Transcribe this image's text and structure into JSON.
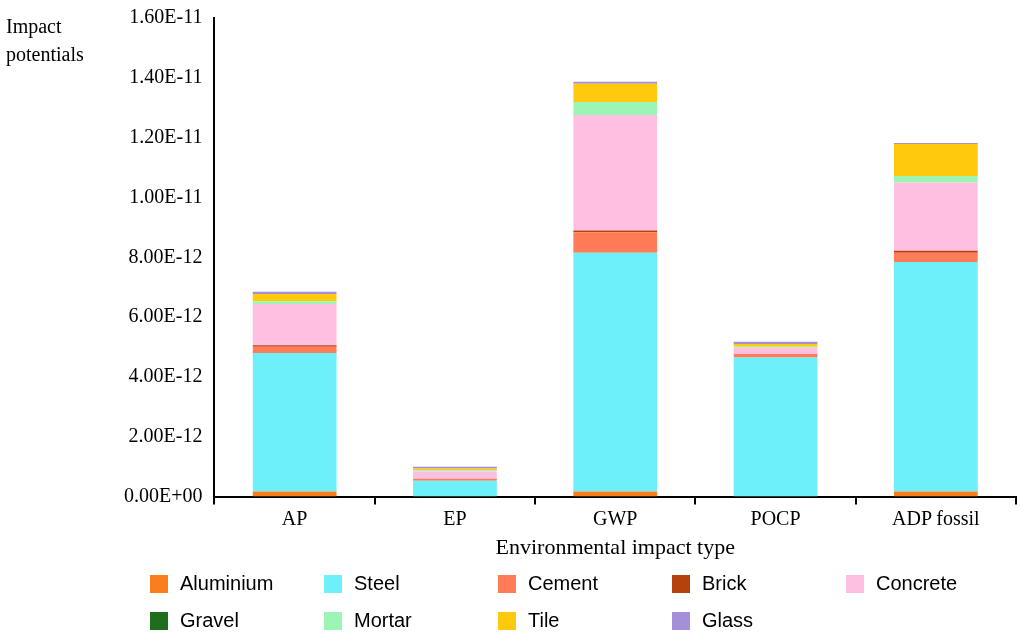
{
  "chart_data": {
    "type": "bar",
    "stacked": true,
    "xlabel": "Environmental impact type",
    "ylabel": "Impact potentials",
    "categories": [
      "AP",
      "EP",
      "GWP",
      "POCP",
      "ADP fossil"
    ],
    "series": [
      {
        "name": "Aluminium",
        "color": "#fa7d1e",
        "values": [
          1.7e-13,
          null,
          1.7e-13,
          null,
          1.7e-13
        ]
      },
      {
        "name": "Steel",
        "color": "#6ef0fa",
        "values": [
          4.63e-12,
          5.3e-13,
          7.98e-12,
          4.65e-12,
          7.67e-12
        ]
      },
      {
        "name": "Cement",
        "color": "#ff7c56",
        "values": [
          2.1e-13,
          7e-14,
          6.9e-13,
          1.2e-13,
          3.1e-13
        ]
      },
      {
        "name": "Brick",
        "color": "#b5420c",
        "values": [
          5e-14,
          null,
          6e-14,
          0,
          7e-14
        ]
      },
      {
        "name": "Concrete",
        "color": "#ffbfe0",
        "values": [
          1.38e-12,
          2.5e-13,
          3.86e-12,
          2.1e-13,
          2.28e-12
        ]
      },
      {
        "name": "Gravel",
        "color": "#1e6e1e",
        "values": [
          0,
          0,
          0,
          0,
          0
        ]
      },
      {
        "name": "Mortar",
        "color": "#9cf5b4",
        "values": [
          9e-14,
          3e-14,
          4.3e-13,
          3e-14,
          2.2e-13
        ]
      },
      {
        "name": "Tile",
        "color": "#ffc90e",
        "values": [
          2.4e-13,
          6e-14,
          6.1e-13,
          9e-14,
          1.07e-12
        ]
      },
      {
        "name": "Glass",
        "color": "#a48fd8",
        "values": [
          8e-14,
          6e-14,
          7e-14,
          8e-14,
          3e-14
        ]
      }
    ],
    "ylim": [
      0,
      1.6e-11
    ],
    "yticks": [
      {
        "value": 0,
        "label": "0.00E+00"
      },
      {
        "value": 2e-12,
        "label": "2.00E-12"
      },
      {
        "value": 4e-12,
        "label": "4.00E-12"
      },
      {
        "value": 6e-12,
        "label": "6.00E-12"
      },
      {
        "value": 8e-12,
        "label": "8.00E-12"
      },
      {
        "value": 1e-11,
        "label": "1.00E-11"
      },
      {
        "value": 1.2e-11,
        "label": "1.20E-11"
      },
      {
        "value": 1.4e-11,
        "label": "1.40E-11"
      },
      {
        "value": 1.6e-11,
        "label": "1.60E-11"
      }
    ],
    "grid": false,
    "legend": "bottom"
  }
}
